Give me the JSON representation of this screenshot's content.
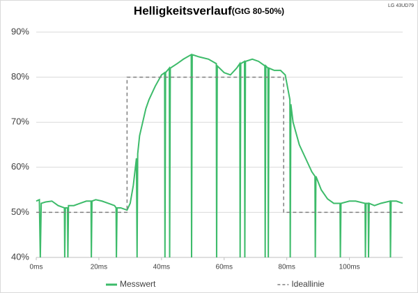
{
  "chart_data": {
    "type": "line",
    "title": "Helligkeitsverlauf",
    "subtitle": "(GtG 80-50%)",
    "annotation": "LG 43UD79",
    "xlim": [
      0,
      117
    ],
    "xticks": [
      {
        "value": 0,
        "label": "0ms"
      },
      {
        "value": 20,
        "label": "20ms"
      },
      {
        "value": 40,
        "label": "40ms"
      },
      {
        "value": 60,
        "label": "60ms"
      },
      {
        "value": 80,
        "label": "80ms"
      },
      {
        "value": 100,
        "label": "100ms"
      }
    ],
    "ylim": [
      40,
      90
    ],
    "yticks": [
      {
        "value": 40,
        "label": "40%"
      },
      {
        "value": 50,
        "label": "50%"
      },
      {
        "value": 60,
        "label": "60%"
      },
      {
        "value": 70,
        "label": "70%"
      },
      {
        "value": 80,
        "label": "80%"
      },
      {
        "value": 90,
        "label": "90%"
      }
    ],
    "grid": true,
    "legend": "bottom",
    "series": [
      {
        "name": "Messwert",
        "color": "#3dbb6a",
        "dash": false,
        "x": [
          0,
          1,
          1.3,
          1.6,
          3,
          5,
          7,
          9,
          9.1,
          9.3,
          10,
          10.1,
          10.3,
          12,
          14,
          16,
          17.5,
          17.6,
          17.8,
          19,
          21,
          23,
          25,
          25.5,
          25.6,
          25.8,
          27,
          29,
          30,
          31,
          32,
          32.2,
          32.4,
          33,
          34,
          35,
          36,
          38,
          40,
          41,
          41.1,
          41.3,
          42.5,
          42.6,
          42.8,
          45,
          47,
          49.5,
          49.6,
          49.8,
          52,
          55,
          57.5,
          57.6,
          57.8,
          60,
          62,
          64,
          65,
          65.1,
          65.3,
          66.5,
          66.6,
          66.8,
          69,
          71,
          73,
          73.1,
          73.3,
          74,
          74.1,
          74.3,
          76,
          78,
          79.5,
          81,
          81.1,
          81.3,
          82,
          84,
          86,
          88,
          89,
          89.1,
          89.3,
          91,
          93,
          95,
          97,
          97.1,
          97.3,
          100,
          102,
          105,
          105.1,
          105.3,
          106,
          106.1,
          106.3,
          108,
          110,
          113,
          113.1,
          113.3,
          115,
          117
        ],
        "values": [
          52.5,
          52.8,
          40,
          52,
          52.3,
          52.5,
          51.5,
          51,
          40,
          51,
          51,
          40,
          51.5,
          51.5,
          52,
          52.5,
          52.5,
          40,
          52.5,
          52.8,
          52.5,
          52,
          51.5,
          51,
          40,
          51,
          51,
          50.5,
          52,
          56,
          62,
          40,
          63,
          67,
          70,
          73,
          75,
          78,
          80.5,
          81,
          40,
          81,
          82,
          40,
          82,
          83,
          84,
          85,
          40,
          85,
          84.5,
          84,
          83,
          40,
          82.5,
          81,
          80.5,
          82,
          83,
          40,
          83,
          83.5,
          40,
          83.5,
          84,
          83.5,
          82.5,
          40,
          82.5,
          82,
          40,
          82,
          81.5,
          81.5,
          80.5,
          75,
          40,
          74,
          70,
          65,
          62,
          59,
          58,
          40,
          58,
          55,
          53,
          52,
          52,
          40,
          52,
          52.5,
          52.5,
          52,
          40,
          52,
          52,
          40,
          52,
          51.5,
          52,
          52.5,
          40,
          52.5,
          52.5,
          52
        ]
      },
      {
        "name": "Ideallinie",
        "color": "#7f7f7f",
        "dash": true,
        "x": [
          0,
          29,
          29,
          79,
          79,
          117
        ],
        "values": [
          50,
          50,
          80,
          80,
          50,
          50
        ]
      }
    ]
  }
}
